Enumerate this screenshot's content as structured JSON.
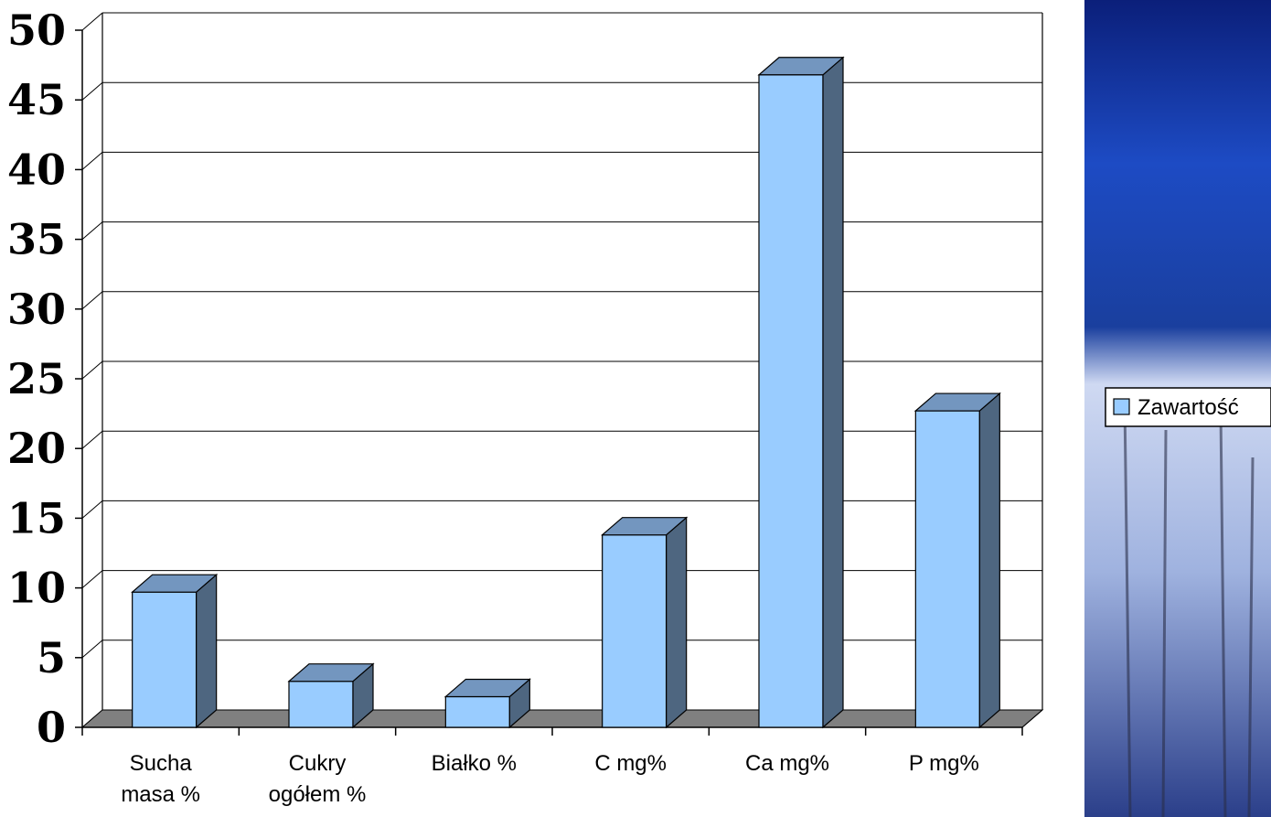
{
  "chart_data": {
    "type": "bar",
    "style": "3d-column",
    "categories": [
      [
        "Sucha",
        "masa %"
      ],
      [
        "Cukry",
        "ogółem %"
      ],
      [
        "Białko %"
      ],
      [
        "C mg%"
      ],
      [
        "Ca mg%"
      ],
      [
        "P mg%"
      ]
    ],
    "series": [
      {
        "name": "Zawartość",
        "values": [
          9.7,
          3.3,
          2.2,
          13.8,
          46.8,
          22.7
        ]
      }
    ],
    "yticks": [
      "0",
      "5",
      "10",
      "15",
      "20",
      "25",
      "30",
      "35",
      "40",
      "45",
      "50"
    ],
    "ylim": [
      0,
      50
    ],
    "grid": true,
    "legend": "right",
    "colors": {
      "bar_front": "#99ccff",
      "bar_side": "#4e6680",
      "bar_top": "#7396bf",
      "floor": "#808080",
      "gridline": "#000000",
      "background_panel": "#1a3f9e"
    }
  }
}
